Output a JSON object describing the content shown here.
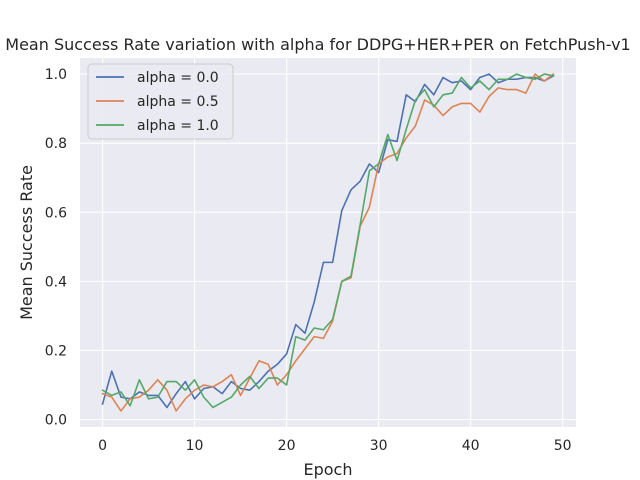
{
  "chart_data": {
    "type": "line",
    "title": "Mean Success Rate variation with alpha for DDPG+HER+PER on FetchPush-v1",
    "xlabel": "Epoch",
    "ylabel": "Mean Success Rate",
    "xlim": [
      -2.45,
      51.45
    ],
    "ylim": [
      -0.0215,
      1.0465
    ],
    "xticks": [
      0,
      10,
      20,
      30,
      40,
      50
    ],
    "yticks": [
      0.0,
      0.2,
      0.4,
      0.6,
      0.8,
      1.0
    ],
    "grid": true,
    "legend_position": "top-left",
    "plot_background": "#eaeaf2",
    "x": [
      0,
      1,
      2,
      3,
      4,
      5,
      6,
      7,
      8,
      9,
      10,
      11,
      12,
      13,
      14,
      15,
      16,
      17,
      18,
      19,
      20,
      21,
      22,
      23,
      24,
      25,
      26,
      27,
      28,
      29,
      30,
      31,
      32,
      33,
      34,
      35,
      36,
      37,
      38,
      39,
      40,
      41,
      42,
      43,
      44,
      45,
      46,
      47,
      48,
      49
    ],
    "series": [
      {
        "name": "alpha = 0.0",
        "color": "#4c72b0",
        "values": [
          0.045,
          0.14,
          0.065,
          0.06,
          0.08,
          0.07,
          0.07,
          0.035,
          0.075,
          0.11,
          0.06,
          0.09,
          0.095,
          0.075,
          0.11,
          0.09,
          0.085,
          0.11,
          0.14,
          0.16,
          0.19,
          0.275,
          0.25,
          0.34,
          0.455,
          0.455,
          0.605,
          0.665,
          0.69,
          0.74,
          0.715,
          0.81,
          0.805,
          0.94,
          0.92,
          0.97,
          0.94,
          0.99,
          0.975,
          0.98,
          0.955,
          0.99,
          1.0,
          0.975,
          0.985,
          0.985,
          0.99,
          0.99,
          0.98,
          0.995
        ]
      },
      {
        "name": "alpha = 0.5",
        "color": "#dd8452",
        "values": [
          0.075,
          0.065,
          0.025,
          0.06,
          0.065,
          0.085,
          0.115,
          0.085,
          0.025,
          0.06,
          0.085,
          0.1,
          0.095,
          0.11,
          0.13,
          0.07,
          0.12,
          0.17,
          0.16,
          0.1,
          0.13,
          0.17,
          0.205,
          0.24,
          0.235,
          0.285,
          0.4,
          0.41,
          0.56,
          0.615,
          0.74,
          0.76,
          0.77,
          0.815,
          0.85,
          0.925,
          0.91,
          0.88,
          0.905,
          0.915,
          0.915,
          0.89,
          0.935,
          0.96,
          0.955,
          0.955,
          0.945,
          1.0,
          0.98,
          1.0
        ]
      },
      {
        "name": "alpha = 1.0",
        "color": "#55a868",
        "values": [
          0.085,
          0.07,
          0.08,
          0.04,
          0.115,
          0.06,
          0.065,
          0.11,
          0.11,
          0.085,
          0.115,
          0.065,
          0.035,
          0.05,
          0.065,
          0.1,
          0.125,
          0.09,
          0.12,
          0.12,
          0.1,
          0.24,
          0.23,
          0.265,
          0.26,
          0.29,
          0.4,
          0.415,
          0.565,
          0.72,
          0.74,
          0.825,
          0.75,
          0.84,
          0.925,
          0.955,
          0.905,
          0.94,
          0.945,
          0.99,
          0.96,
          0.98,
          0.955,
          0.985,
          0.985,
          1.0,
          0.99,
          0.985,
          1.0,
          0.995
        ]
      }
    ]
  }
}
